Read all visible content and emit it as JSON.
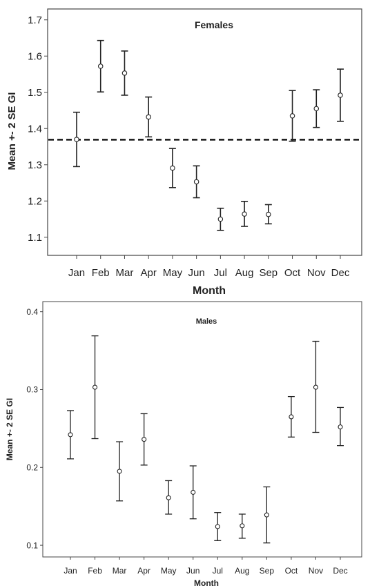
{
  "chart_data": [
    {
      "type": "errorbar",
      "title": "Females",
      "xlabel": "Month",
      "ylabel": "Mean +- 2 SE GI",
      "categories": [
        "Jan",
        "Feb",
        "Mar",
        "Apr",
        "May",
        "Jun",
        "Jul",
        "Aug",
        "Sep",
        "Oct",
        "Nov",
        "Dec"
      ],
      "ylim": [
        1.05,
        1.73
      ],
      "yticks": [
        "1.1",
        "1.2",
        "1.3",
        "1.4",
        "1.5",
        "1.6",
        "1.7"
      ],
      "mean": [
        1.37,
        1.572,
        1.553,
        1.432,
        1.291,
        1.253,
        1.15,
        1.164,
        1.163,
        1.435,
        1.455,
        1.492
      ],
      "lower": [
        1.295,
        1.501,
        1.492,
        1.377,
        1.237,
        1.209,
        1.119,
        1.13,
        1.137,
        1.365,
        1.403,
        1.42
      ],
      "upper": [
        1.445,
        1.643,
        1.614,
        1.487,
        1.345,
        1.297,
        1.18,
        1.199,
        1.19,
        1.505,
        1.507,
        1.564
      ],
      "reference_line": 1.369,
      "grid": false
    },
    {
      "type": "errorbar",
      "title": "Males",
      "xlabel": "Month",
      "ylabel": "Mean +- 2 SE GI",
      "categories": [
        "Jan",
        "Feb",
        "Mar",
        "Apr",
        "May",
        "Jun",
        "Jul",
        "Aug",
        "Sep",
        "Oct",
        "Nov",
        "Dec"
      ],
      "ylim": [
        0.085,
        0.413
      ],
      "yticks": [
        "0.1",
        "0.2",
        "0.3",
        "0.4"
      ],
      "mean": [
        0.242,
        0.303,
        0.195,
        0.236,
        0.161,
        0.168,
        0.124,
        0.125,
        0.139,
        0.265,
        0.303,
        0.252
      ],
      "lower": [
        0.211,
        0.237,
        0.157,
        0.203,
        0.14,
        0.134,
        0.106,
        0.109,
        0.103,
        0.239,
        0.245,
        0.228
      ],
      "upper": [
        0.273,
        0.369,
        0.233,
        0.269,
        0.183,
        0.202,
        0.142,
        0.14,
        0.175,
        0.291,
        0.362,
        0.277
      ],
      "grid": false
    }
  ]
}
